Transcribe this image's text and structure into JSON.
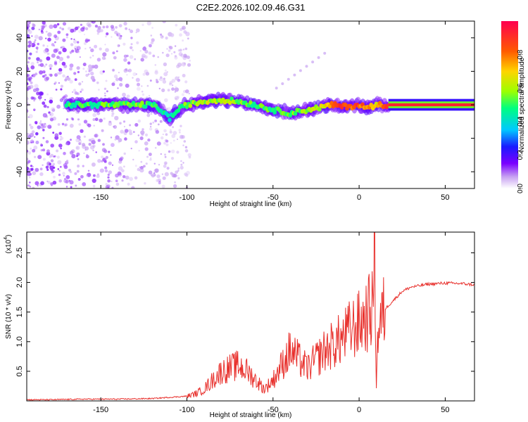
{
  "title": "C2E2.2026.102.09.46.G31",
  "chart_data": [
    {
      "type": "heatmap",
      "xlabel": "Height of straight line (km)",
      "ylabel": "Frequency (Hz)",
      "xlim": [
        -193,
        67
      ],
      "ylim": [
        -50,
        50
      ],
      "xticks": [
        -150,
        -100,
        -50,
        0,
        50
      ],
      "yticks": [
        -40,
        -20,
        0,
        20,
        40
      ],
      "colorbar": {
        "label": "Normalized spectral amplitude",
        "ticks": [
          0.0,
          0.2,
          0.4,
          0.6,
          0.8
        ],
        "colors": [
          "#ffffff",
          "#c8a2f2",
          "#7a00ff",
          "#1a1aff",
          "#00c8ff",
          "#00ff80",
          "#9cff00",
          "#ffd400",
          "#ff5a00",
          "#ff0050"
        ]
      },
      "ridge": {
        "x": [
          -170,
          -160,
          -150,
          -140,
          -130,
          -120,
          -115,
          -110,
          -105,
          -100,
          -90,
          -80,
          -70,
          -60,
          -50,
          -40,
          -30,
          -20,
          -15,
          -10,
          -5,
          0,
          5,
          10,
          17,
          30,
          50,
          67
        ],
        "freq": [
          0,
          0,
          0,
          0,
          0,
          0,
          -3,
          -8,
          -3,
          0,
          2,
          3,
          2,
          0,
          -3,
          -5,
          -3,
          -1,
          0,
          -1,
          -1,
          0,
          -2,
          0,
          0,
          0,
          0,
          0
        ],
        "amplitude": [
          0.45,
          0.5,
          0.5,
          0.55,
          0.55,
          0.5,
          0.45,
          0.4,
          0.5,
          0.55,
          0.6,
          0.6,
          0.55,
          0.5,
          0.5,
          0.55,
          0.55,
          0.65,
          0.85,
          0.9,
          0.8,
          0.85,
          0.75,
          0.7,
          0.95,
          0.95,
          0.95,
          0.95
        ]
      }
    },
    {
      "type": "line",
      "xlabel": "Height of straight line (km)",
      "ylabel": "SNR (10 * v/v)",
      "yscale_label": "(x10",
      "yscale_exp": "4",
      "xlim": [
        -193,
        67
      ],
      "ylim": [
        0,
        2.85
      ],
      "xticks": [
        -150,
        -100,
        -50,
        0,
        50
      ],
      "yticks": [
        0.5,
        1.0,
        1.5,
        2.0,
        2.5
      ],
      "series": [
        {
          "name": "SNR",
          "color": "#e8302c",
          "x": [
            -193,
            -180,
            -160,
            -140,
            -120,
            -110,
            -100,
            -95,
            -90,
            -85,
            -80,
            -75,
            -70,
            -65,
            -60,
            -55,
            -50,
            -45,
            -40,
            -35,
            -30,
            -25,
            -20,
            -15,
            -10,
            -5,
            0,
            5,
            8,
            9,
            10,
            11,
            15,
            20,
            25,
            30,
            40,
            50,
            60,
            67
          ],
          "y": [
            0.02,
            0.02,
            0.03,
            0.03,
            0.04,
            0.06,
            0.08,
            0.12,
            0.2,
            0.35,
            0.5,
            0.55,
            0.6,
            0.5,
            0.35,
            0.2,
            0.35,
            0.6,
            0.85,
            0.7,
            0.55,
            0.7,
            0.85,
            0.95,
            1.05,
            1.2,
            1.3,
            1.45,
            1.6,
            2.85,
            0.3,
            1.2,
            1.55,
            1.7,
            1.85,
            1.92,
            1.97,
            1.99,
            1.98,
            1.96
          ]
        }
      ]
    }
  ]
}
